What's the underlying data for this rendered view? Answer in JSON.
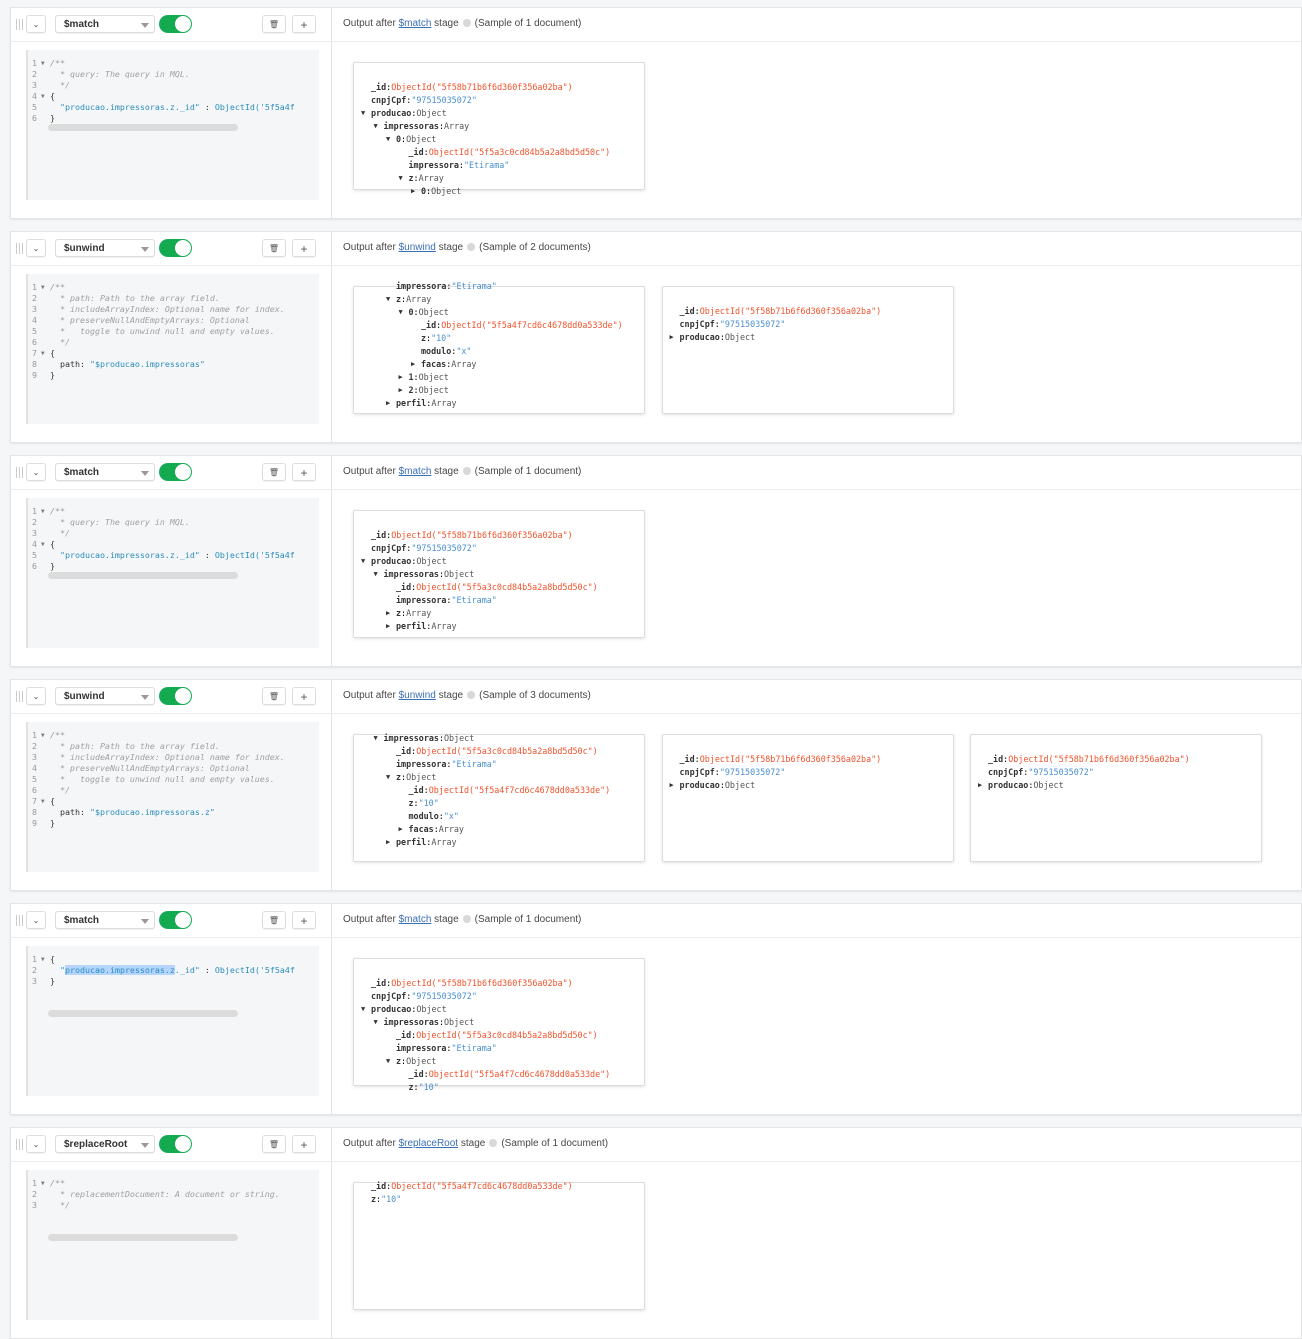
{
  "common": {
    "output_prefix": "Output after",
    "output_suffix": "stage",
    "collapse_icon": "chevron-down-icon",
    "delete_icon": "trash-icon",
    "add_label": "+",
    "colors": {
      "toggle_on": "#13aa52",
      "object_id": "#f0522b",
      "string": "#4a8fcf",
      "link": "#3a6fb5"
    }
  },
  "stages": [
    {
      "operator": "$match",
      "enabled": true,
      "sample": "(Sample of 1 document)",
      "code": [
        {
          "n": "1",
          "fold": true,
          "segs": [
            {
              "t": "/**",
              "k": "comment"
            }
          ]
        },
        {
          "n": "2",
          "segs": [
            {
              "t": "  * query: The query in MQL.",
              "k": "comment"
            }
          ]
        },
        {
          "n": "3",
          "segs": [
            {
              "t": "  */",
              "k": "comment"
            }
          ]
        },
        {
          "n": "4",
          "fold": true,
          "segs": [
            {
              "t": "{",
              "k": "punc"
            }
          ]
        },
        {
          "n": "5",
          "segs": [
            {
              "t": "  \"producao.impressoras.z._id\"",
              "k": "str"
            },
            {
              "t": " : ",
              "k": "punc"
            },
            {
              "t": "ObjectId(",
              "k": "fn"
            },
            {
              "t": "'5f5a4f",
              "k": "str"
            }
          ]
        },
        {
          "n": "6",
          "segs": [
            {
              "t": "}",
              "k": "punc"
            }
          ]
        }
      ],
      "docs": [
        {
          "lines": [
            {
              "i": 0,
              "key": "_id",
              "vk": "oid",
              "v": "ObjectId(\"5f58b71b6f6d360f356a02ba\")"
            },
            {
              "i": 0,
              "key": "cnpjCpf",
              "vk": "str",
              "v": "\"97515035072\""
            },
            {
              "i": 0,
              "tg": "down",
              "key": "producao",
              "vk": "type",
              "v": "Object"
            },
            {
              "i": 1,
              "tg": "down",
              "key": "impressoras",
              "vk": "type",
              "v": "Array"
            },
            {
              "i": 2,
              "tg": "down",
              "key": "0",
              "vk": "type",
              "v": "Object"
            },
            {
              "i": 3,
              "key": "_id",
              "vk": "oid",
              "v": "ObjectId(\"5f5a3c0cd84b5a2a8bd5d50c\")"
            },
            {
              "i": 3,
              "key": "impressora",
              "vk": "str",
              "v": "\"Etirama\""
            },
            {
              "i": 3,
              "tg": "down",
              "key": "z",
              "vk": "type",
              "v": "Array"
            },
            {
              "i": 4,
              "tg": "right",
              "key": "0",
              "vk": "type",
              "v": "Object"
            }
          ]
        }
      ]
    },
    {
      "operator": "$unwind",
      "enabled": true,
      "sample": "(Sample of 2 documents)",
      "code": [
        {
          "n": "1",
          "fold": true,
          "segs": [
            {
              "t": "/**",
              "k": "comment"
            }
          ]
        },
        {
          "n": "2",
          "segs": [
            {
              "t": "  * path: Path to the array field.",
              "k": "comment"
            }
          ]
        },
        {
          "n": "3",
          "segs": [
            {
              "t": "  * includeArrayIndex: Optional name for index.",
              "k": "comment"
            }
          ]
        },
        {
          "n": "4",
          "segs": [
            {
              "t": "  * preserveNullAndEmptyArrays: Optional",
              "k": "comment"
            }
          ]
        },
        {
          "n": "5",
          "segs": [
            {
              "t": "  *   toggle to unwind null and empty values.",
              "k": "comment"
            }
          ]
        },
        {
          "n": "6",
          "segs": [
            {
              "t": "  */",
              "k": "comment"
            }
          ]
        },
        {
          "n": "7",
          "fold": true,
          "segs": [
            {
              "t": "{",
              "k": "punc"
            }
          ]
        },
        {
          "n": "8",
          "segs": [
            {
              "t": "  path: ",
              "k": "key"
            },
            {
              "t": "\"$producao.impressoras\"",
              "k": "str"
            }
          ]
        },
        {
          "n": "9",
          "segs": [
            {
              "t": "}",
              "k": "punc"
            }
          ]
        }
      ],
      "docs": [
        {
          "scrolled": true,
          "lines": [
            {
              "i": 2,
              "key": "impressora",
              "vk": "str",
              "v": "\"Etirama\""
            },
            {
              "i": 2,
              "tg": "down",
              "key": "z",
              "vk": "type",
              "v": "Array"
            },
            {
              "i": 3,
              "tg": "down",
              "key": "0",
              "vk": "type",
              "v": "Object"
            },
            {
              "i": 4,
              "key": "_id",
              "vk": "oid",
              "v": "ObjectId(\"5f5a4f7cd6c4678dd0a533de\")"
            },
            {
              "i": 4,
              "key": "z",
              "vk": "str",
              "v": "\"10\""
            },
            {
              "i": 4,
              "key": "modulo",
              "vk": "str",
              "v": "\"x\""
            },
            {
              "i": 4,
              "tg": "right",
              "key": "facas",
              "vk": "type",
              "v": "Array"
            },
            {
              "i": 3,
              "tg": "right",
              "key": "1",
              "vk": "type",
              "v": "Object"
            },
            {
              "i": 3,
              "tg": "right",
              "key": "2",
              "vk": "type",
              "v": "Object"
            },
            {
              "i": 2,
              "tg": "right",
              "key": "perfil",
              "vk": "type",
              "v": "Array"
            }
          ]
        },
        {
          "lines": [
            {
              "i": 0,
              "key": "_id",
              "vk": "oid",
              "v": "ObjectId(\"5f58b71b6f6d360f356a02ba\")"
            },
            {
              "i": 0,
              "key": "cnpjCpf",
              "vk": "str",
              "v": "\"97515035072\""
            },
            {
              "i": 0,
              "tg": "right",
              "key": "producao",
              "vk": "type",
              "v": "Object"
            }
          ]
        }
      ]
    },
    {
      "operator": "$match",
      "enabled": true,
      "sample": "(Sample of 1 document)",
      "code": [
        {
          "n": "1",
          "fold": true,
          "segs": [
            {
              "t": "/**",
              "k": "comment"
            }
          ]
        },
        {
          "n": "2",
          "segs": [
            {
              "t": "  * query: The query in MQL.",
              "k": "comment"
            }
          ]
        },
        {
          "n": "3",
          "segs": [
            {
              "t": "  */",
              "k": "comment"
            }
          ]
        },
        {
          "n": "4",
          "fold": true,
          "segs": [
            {
              "t": "{",
              "k": "punc"
            }
          ]
        },
        {
          "n": "5",
          "segs": [
            {
              "t": "  \"producao.impressoras.z._id\"",
              "k": "str"
            },
            {
              "t": " : ",
              "k": "punc"
            },
            {
              "t": "ObjectId(",
              "k": "fn"
            },
            {
              "t": "'5f5a4f",
              "k": "str"
            }
          ]
        },
        {
          "n": "6",
          "segs": [
            {
              "t": "}",
              "k": "punc"
            }
          ]
        }
      ],
      "docs": [
        {
          "lines": [
            {
              "i": 0,
              "key": "_id",
              "vk": "oid",
              "v": "ObjectId(\"5f58b71b6f6d360f356a02ba\")"
            },
            {
              "i": 0,
              "key": "cnpjCpf",
              "vk": "str",
              "v": "\"97515035072\""
            },
            {
              "i": 0,
              "tg": "down",
              "key": "producao",
              "vk": "type",
              "v": "Object"
            },
            {
              "i": 1,
              "tg": "down",
              "key": "impressoras",
              "vk": "type",
              "v": "Object"
            },
            {
              "i": 2,
              "key": "_id",
              "vk": "oid",
              "v": "ObjectId(\"5f5a3c0cd84b5a2a8bd5d50c\")"
            },
            {
              "i": 2,
              "key": "impressora",
              "vk": "str",
              "v": "\"Etirama\""
            },
            {
              "i": 2,
              "tg": "right",
              "key": "z",
              "vk": "type",
              "v": "Array"
            },
            {
              "i": 2,
              "tg": "right",
              "key": "perfil",
              "vk": "type",
              "v": "Array"
            }
          ]
        }
      ]
    },
    {
      "operator": "$unwind",
      "enabled": true,
      "sample": "(Sample of 3 documents)",
      "code": [
        {
          "n": "1",
          "fold": true,
          "segs": [
            {
              "t": "/**",
              "k": "comment"
            }
          ]
        },
        {
          "n": "2",
          "segs": [
            {
              "t": "  * path: Path to the array field.",
              "k": "comment"
            }
          ]
        },
        {
          "n": "3",
          "segs": [
            {
              "t": "  * includeArrayIndex: Optional name for index.",
              "k": "comment"
            }
          ]
        },
        {
          "n": "4",
          "segs": [
            {
              "t": "  * preserveNullAndEmptyArrays: Optional",
              "k": "comment"
            }
          ]
        },
        {
          "n": "5",
          "segs": [
            {
              "t": "  *   toggle to unwind null and empty values.",
              "k": "comment"
            }
          ]
        },
        {
          "n": "6",
          "segs": [
            {
              "t": "  */",
              "k": "comment"
            }
          ]
        },
        {
          "n": "7",
          "fold": true,
          "segs": [
            {
              "t": "{",
              "k": "punc"
            }
          ]
        },
        {
          "n": "8",
          "segs": [
            {
              "t": "  path: ",
              "k": "key"
            },
            {
              "t": "\"$producao.impressoras.z\"",
              "k": "str"
            }
          ]
        },
        {
          "n": "9",
          "segs": [
            {
              "t": "}",
              "k": "punc"
            }
          ]
        }
      ],
      "docs": [
        {
          "scrolled2": true,
          "lines": [
            {
              "i": 1,
              "tg": "down",
              "key": "impressoras",
              "vk": "type",
              "v": "Object"
            },
            {
              "i": 2,
              "key": "_id",
              "vk": "oid",
              "v": "ObjectId(\"5f5a3c0cd84b5a2a8bd5d50c\")"
            },
            {
              "i": 2,
              "key": "impressora",
              "vk": "str",
              "v": "\"Etirama\""
            },
            {
              "i": 2,
              "tg": "down",
              "key": "z",
              "vk": "type",
              "v": "Object"
            },
            {
              "i": 3,
              "key": "_id",
              "vk": "oid",
              "v": "ObjectId(\"5f5a4f7cd6c4678dd0a533de\")"
            },
            {
              "i": 3,
              "key": "z",
              "vk": "str",
              "v": "\"10\""
            },
            {
              "i": 3,
              "key": "modulo",
              "vk": "str",
              "v": "\"x\""
            },
            {
              "i": 3,
              "tg": "right",
              "key": "facas",
              "vk": "type",
              "v": "Array"
            },
            {
              "i": 2,
              "tg": "right",
              "key": "perfil",
              "vk": "type",
              "v": "Array"
            }
          ]
        },
        {
          "lines": [
            {
              "i": 0,
              "key": "_id",
              "vk": "oid",
              "v": "ObjectId(\"5f58b71b6f6d360f356a02ba\")"
            },
            {
              "i": 0,
              "key": "cnpjCpf",
              "vk": "str",
              "v": "\"97515035072\""
            },
            {
              "i": 0,
              "tg": "right",
              "key": "producao",
              "vk": "type",
              "v": "Object"
            }
          ]
        },
        {
          "lines": [
            {
              "i": 0,
              "key": "_id",
              "vk": "oid",
              "v": "ObjectId(\"5f58b71b6f6d360f356a02ba\")"
            },
            {
              "i": 0,
              "key": "cnpjCpf",
              "vk": "str",
              "v": "\"97515035072\""
            },
            {
              "i": 0,
              "tg": "right",
              "key": "producao",
              "vk": "type",
              "v": "Object"
            }
          ]
        }
      ]
    },
    {
      "operator": "$match",
      "enabled": true,
      "sample": "(Sample of 1 document)",
      "code": [
        {
          "n": "1",
          "fold": true,
          "segs": [
            {
              "t": "{",
              "k": "punc"
            }
          ]
        },
        {
          "n": "2",
          "segs": [
            {
              "t": "  \"",
              "k": "str"
            },
            {
              "t": "producao.impressoras.z",
              "k": "sel"
            },
            {
              "t": "._id\"",
              "k": "str"
            },
            {
              "t": " : ",
              "k": "punc"
            },
            {
              "t": "ObjectId(",
              "k": "fn"
            },
            {
              "t": "'5f5a4f",
              "k": "str"
            }
          ]
        },
        {
          "n": "3",
          "segs": [
            {
              "t": "}",
              "k": "punc"
            }
          ]
        }
      ],
      "docs": [
        {
          "lines": [
            {
              "i": 0,
              "key": "_id",
              "vk": "oid",
              "v": "ObjectId(\"5f58b71b6f6d360f356a02ba\")"
            },
            {
              "i": 0,
              "key": "cnpjCpf",
              "vk": "str",
              "v": "\"97515035072\""
            },
            {
              "i": 0,
              "tg": "down",
              "key": "producao",
              "vk": "type",
              "v": "Object"
            },
            {
              "i": 1,
              "tg": "down",
              "key": "impressoras",
              "vk": "type",
              "v": "Object"
            },
            {
              "i": 2,
              "key": "_id",
              "vk": "oid",
              "v": "ObjectId(\"5f5a3c0cd84b5a2a8bd5d50c\")"
            },
            {
              "i": 2,
              "key": "impressora",
              "vk": "str",
              "v": "\"Etirama\""
            },
            {
              "i": 2,
              "tg": "down",
              "key": "z",
              "vk": "type",
              "v": "Object"
            },
            {
              "i": 3,
              "key": "_id",
              "vk": "oid",
              "v": "ObjectId(\"5f5a4f7cd6c4678dd0a533de\")"
            },
            {
              "i": 3,
              "key": "z",
              "vk": "str",
              "v": "\"10\""
            }
          ]
        }
      ]
    },
    {
      "operator": "$replaceRoot",
      "enabled": true,
      "sample": "(Sample of 1 document)",
      "code": [
        {
          "n": "1",
          "fold": true,
          "segs": [
            {
              "t": "/**",
              "k": "comment"
            }
          ]
        },
        {
          "n": "2",
          "segs": [
            {
              "t": "  * replacementDocument: A document or string.",
              "k": "comment"
            }
          ]
        },
        {
          "n": "3",
          "segs": [
            {
              "t": "  */",
              "k": "comment"
            }
          ]
        }
      ],
      "docs": [
        {
          "scrolled2": true,
          "lines": [
            {
              "i": 0,
              "key": "_id",
              "vk": "oid",
              "v": "ObjectId(\"5f5a4f7cd6c4678dd0a533de\")"
            },
            {
              "i": 0,
              "key": "z",
              "vk": "str",
              "v": "\"10\""
            }
          ]
        }
      ]
    }
  ]
}
